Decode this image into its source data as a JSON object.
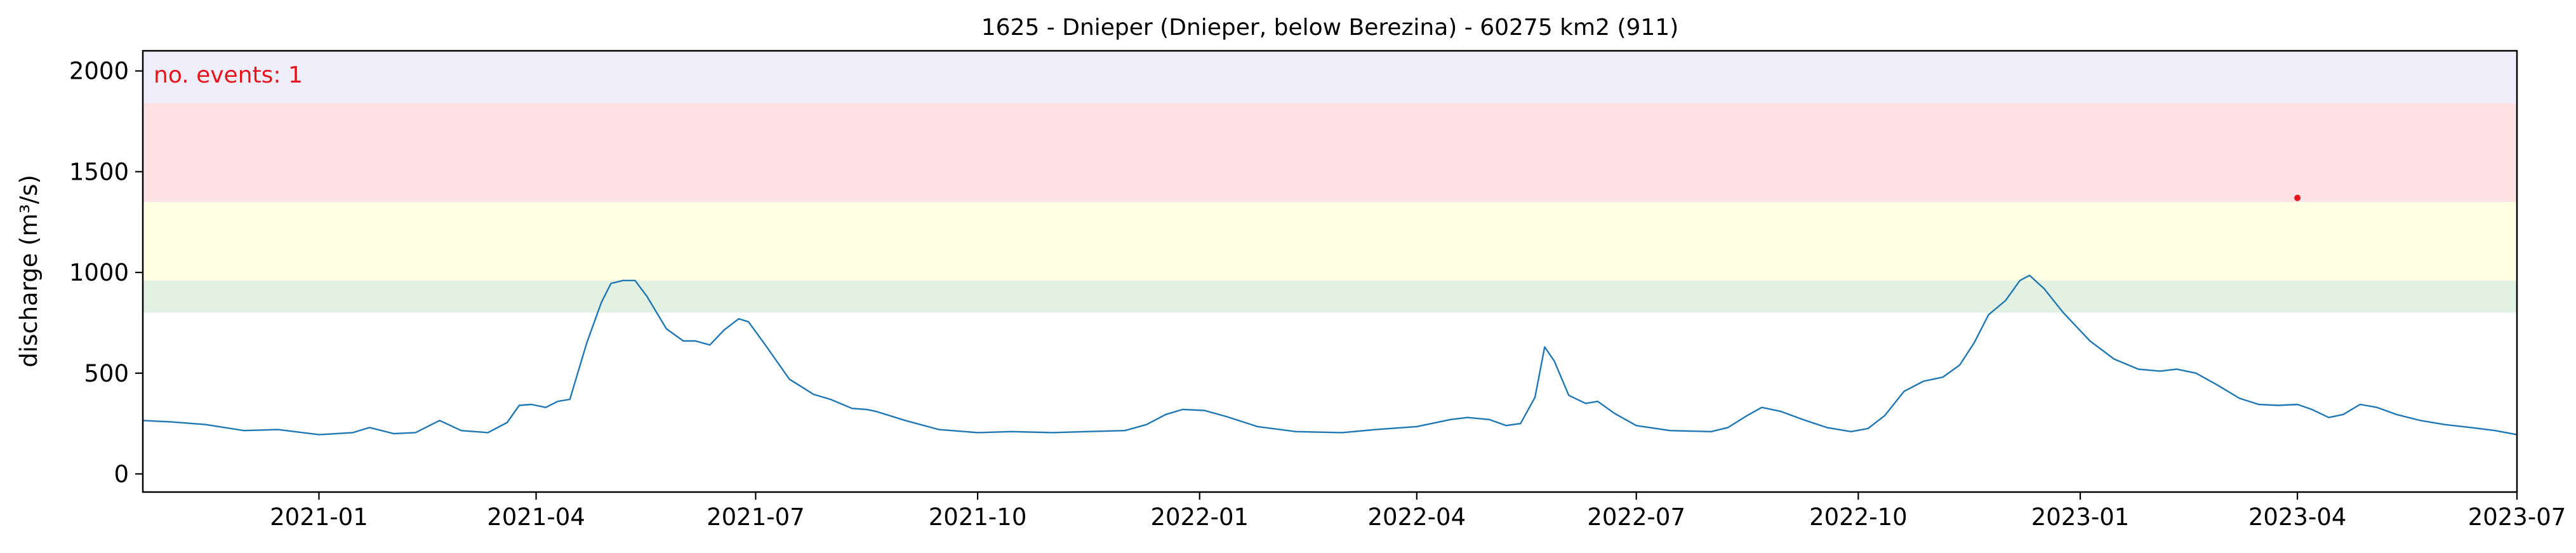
{
  "chart_data": {
    "type": "line",
    "title": "1625 - Dnieper (Dnieper, below Berezina) - 60275 km2 (911)",
    "xlabel": "",
    "ylabel": "discharge (m³/s)",
    "annotation": "no. events: 1",
    "xlim": [
      "2020-10-20",
      "2023-07-01"
    ],
    "ylim": [
      -90,
      2100
    ],
    "grid": false,
    "x_ticks": [
      "2021-01-01",
      "2021-04-01",
      "2021-07-01",
      "2021-10-01",
      "2022-01-01",
      "2022-04-01",
      "2022-07-01",
      "2022-10-01",
      "2023-01-01",
      "2023-04-01",
      "2023-07-01"
    ],
    "x_tick_labels": [
      "2021-01",
      "2021-04",
      "2021-07",
      "2021-10",
      "2022-01",
      "2022-04",
      "2022-07",
      "2022-10",
      "2023-01",
      "2023-04",
      "2023-07"
    ],
    "y_ticks": [
      0,
      500,
      1000,
      1500,
      2000
    ],
    "bands": [
      {
        "from": 800,
        "to": 960,
        "color": "#e3f1e3"
      },
      {
        "from": 960,
        "to": 1350,
        "color": "#fefee3"
      },
      {
        "from": 1350,
        "to": 1840,
        "color": "#ffe0e3"
      },
      {
        "from": 1840,
        "to": 2100,
        "color": "#f1eefb"
      }
    ],
    "series": [
      {
        "color": "#1f77b4",
        "points": [
          [
            "2020-10-20",
            265
          ],
          [
            "2020-11-01",
            258
          ],
          [
            "2020-11-15",
            245
          ],
          [
            "2020-12-01",
            215
          ],
          [
            "2020-12-15",
            220
          ],
          [
            "2021-01-01",
            195
          ],
          [
            "2021-01-15",
            205
          ],
          [
            "2021-01-22",
            230
          ],
          [
            "2021-02-01",
            200
          ],
          [
            "2021-02-10",
            205
          ],
          [
            "2021-02-20",
            265
          ],
          [
            "2021-03-01",
            215
          ],
          [
            "2021-03-12",
            205
          ],
          [
            "2021-03-20",
            255
          ],
          [
            "2021-03-25",
            340
          ],
          [
            "2021-03-30",
            345
          ],
          [
            "2021-04-05",
            330
          ],
          [
            "2021-04-10",
            360
          ],
          [
            "2021-04-15",
            370
          ],
          [
            "2021-04-22",
            650
          ],
          [
            "2021-04-28",
            850
          ],
          [
            "2021-05-02",
            945
          ],
          [
            "2021-05-07",
            960
          ],
          [
            "2021-05-12",
            960
          ],
          [
            "2021-05-17",
            880
          ],
          [
            "2021-05-25",
            720
          ],
          [
            "2021-06-01",
            660
          ],
          [
            "2021-06-06",
            660
          ],
          [
            "2021-06-12",
            640
          ],
          [
            "2021-06-18",
            715
          ],
          [
            "2021-06-24",
            770
          ],
          [
            "2021-06-28",
            755
          ],
          [
            "2021-07-05",
            640
          ],
          [
            "2021-07-15",
            470
          ],
          [
            "2021-07-25",
            395
          ],
          [
            "2021-08-01",
            370
          ],
          [
            "2021-08-10",
            325
          ],
          [
            "2021-08-16",
            320
          ],
          [
            "2021-08-20",
            310
          ],
          [
            "2021-09-01",
            265
          ],
          [
            "2021-09-15",
            220
          ],
          [
            "2021-10-01",
            205
          ],
          [
            "2021-10-15",
            210
          ],
          [
            "2021-11-01",
            205
          ],
          [
            "2021-11-15",
            210
          ],
          [
            "2021-12-01",
            215
          ],
          [
            "2021-12-10",
            245
          ],
          [
            "2021-12-18",
            295
          ],
          [
            "2021-12-25",
            320
          ],
          [
            "2022-01-03",
            315
          ],
          [
            "2022-01-12",
            285
          ],
          [
            "2022-01-25",
            235
          ],
          [
            "2022-02-10",
            210
          ],
          [
            "2022-03-01",
            205
          ],
          [
            "2022-03-15",
            220
          ],
          [
            "2022-04-01",
            235
          ],
          [
            "2022-04-15",
            270
          ],
          [
            "2022-04-22",
            280
          ],
          [
            "2022-05-01",
            270
          ],
          [
            "2022-05-08",
            240
          ],
          [
            "2022-05-14",
            250
          ],
          [
            "2022-05-20",
            380
          ],
          [
            "2022-05-24",
            630
          ],
          [
            "2022-05-28",
            560
          ],
          [
            "2022-06-03",
            390
          ],
          [
            "2022-06-10",
            350
          ],
          [
            "2022-06-15",
            360
          ],
          [
            "2022-06-22",
            300
          ],
          [
            "2022-07-01",
            240
          ],
          [
            "2022-07-15",
            215
          ],
          [
            "2022-08-01",
            210
          ],
          [
            "2022-08-08",
            230
          ],
          [
            "2022-08-16",
            290
          ],
          [
            "2022-08-22",
            330
          ],
          [
            "2022-08-30",
            310
          ],
          [
            "2022-09-08",
            270
          ],
          [
            "2022-09-18",
            230
          ],
          [
            "2022-09-28",
            210
          ],
          [
            "2022-10-05",
            225
          ],
          [
            "2022-10-12",
            290
          ],
          [
            "2022-10-20",
            410
          ],
          [
            "2022-10-28",
            460
          ],
          [
            "2022-11-05",
            480
          ],
          [
            "2022-11-12",
            540
          ],
          [
            "2022-11-18",
            650
          ],
          [
            "2022-11-24",
            790
          ],
          [
            "2022-12-01",
            860
          ],
          [
            "2022-12-07",
            960
          ],
          [
            "2022-12-11",
            985
          ],
          [
            "2022-12-17",
            920
          ],
          [
            "2022-12-25",
            800
          ],
          [
            "2023-01-05",
            660
          ],
          [
            "2023-01-15",
            570
          ],
          [
            "2023-01-25",
            520
          ],
          [
            "2023-02-03",
            510
          ],
          [
            "2023-02-10",
            520
          ],
          [
            "2023-02-18",
            500
          ],
          [
            "2023-02-27",
            440
          ],
          [
            "2023-03-08",
            375
          ],
          [
            "2023-03-16",
            345
          ],
          [
            "2023-03-24",
            340
          ],
          [
            "2023-04-01",
            345
          ],
          [
            "2023-04-07",
            320
          ],
          [
            "2023-04-14",
            280
          ],
          [
            "2023-04-20",
            295
          ],
          [
            "2023-04-27",
            345
          ],
          [
            "2023-05-04",
            330
          ],
          [
            "2023-05-12",
            295
          ],
          [
            "2023-05-22",
            265
          ],
          [
            "2023-06-01",
            245
          ],
          [
            "2023-06-12",
            230
          ],
          [
            "2023-06-22",
            215
          ],
          [
            "2023-07-01",
            195
          ]
        ]
      }
    ],
    "events": [
      {
        "x": "2023-04-01",
        "y": 1370,
        "color": "#e8141c"
      }
    ]
  }
}
